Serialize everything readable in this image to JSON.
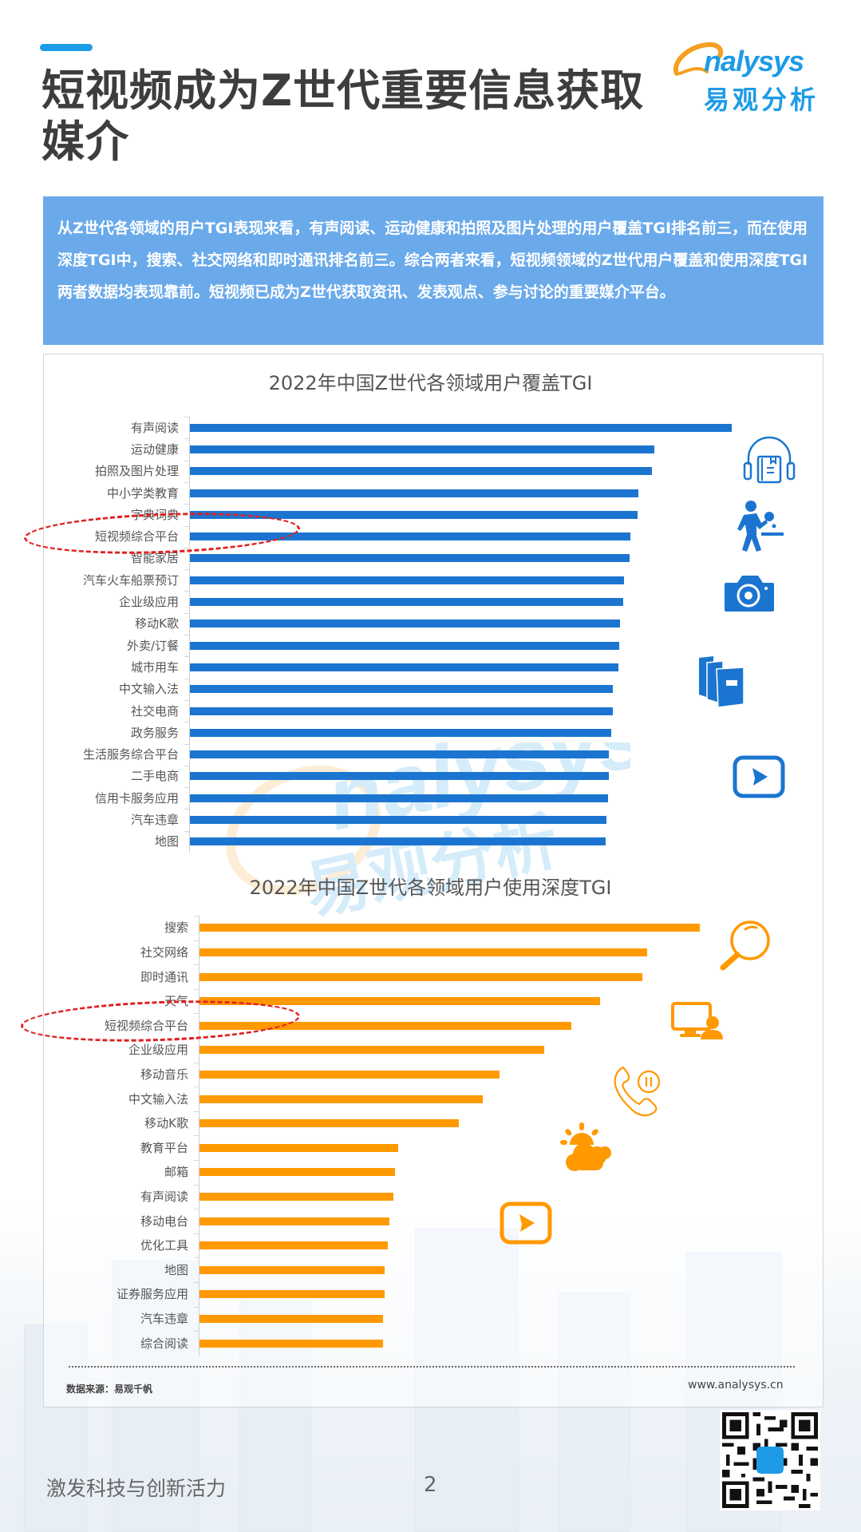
{
  "header": {
    "title": "短视频成为Z世代重要信息获取媒介",
    "logo": {
      "en": "nalysys",
      "cn": "易观分析"
    }
  },
  "summary": "从Z世代各领域的用户TGI表现来看，有声阅读、运动健康和拍照及图片处理的用户覆盖TGI排名前三，而在使用深度TGI中，搜索、社交网络和即时通讯排名前三。综合两者来看，短视频领域的Z世代用户覆盖和使用深度TGI两者数据均表现靠前。短视频已成为Z世代获取资讯、发表观点、参与讨论的重要媒介平台。",
  "colors": {
    "accent": "#1e9be6",
    "summary_bg": "#6aaaeb",
    "coverage_bar": "#1b75d0",
    "depth_bar": "#ff9900",
    "highlight": "#e02020"
  },
  "chart_data": [
    {
      "type": "bar",
      "orientation": "horizontal",
      "title": "2022年中国Z世代各领域用户覆盖TGI",
      "xlabel": "",
      "ylabel": "",
      "grid": false,
      "legend": false,
      "value_note": "No axis ticks or data labels shown; values are relative bar lengths (max = 100).",
      "highlighted_category": "短视频综合平台",
      "categories": [
        "有声阅读",
        "运动健康",
        "拍照及图片处理",
        "中小学类教育",
        "字典词典",
        "短视频综合平台",
        "智能家居",
        "汽车火车船票预订",
        "企业级应用",
        "移动K歌",
        "外卖/订餐",
        "城市用车",
        "中文输入法",
        "社交电商",
        "政务服务",
        "生活服务综合平台",
        "二手电商",
        "信用卡服务应用",
        "汽车违章",
        "地图"
      ],
      "values": [
        100,
        85.7,
        85.3,
        82.8,
        82.6,
        81.3,
        81.1,
        80.1,
        80.0,
        79.4,
        79.2,
        79.1,
        78.1,
        78.1,
        77.8,
        77.3,
        77.3,
        77.2,
        76.9,
        76.7
      ],
      "icons": [
        "audiobook-headphones-icon",
        "table-tennis-player-icon",
        "camera-icon",
        "books-icon",
        "video-play-icon"
      ]
    },
    {
      "type": "bar",
      "orientation": "horizontal",
      "title": "2022年中国Z世代各领域用户使用深度TGI",
      "xlabel": "",
      "ylabel": "",
      "grid": false,
      "legend": false,
      "value_note": "No axis ticks or data labels shown; values are relative bar lengths (max = 100).",
      "highlighted_category": "短视频综合平台",
      "categories": [
        "搜索",
        "社交网络",
        "即时通讯",
        "天气",
        "短视频综合平台",
        "企业级应用",
        "移动音乐",
        "中文输入法",
        "移动K歌",
        "教育平台",
        "邮箱",
        "有声阅读",
        "移动电台",
        "优化工具",
        "地图",
        "证券服务应用",
        "汽车违章",
        "综合阅读"
      ],
      "values": [
        100,
        89.5,
        88.5,
        80.1,
        74.3,
        68.9,
        60.0,
        56.6,
        51.8,
        39.7,
        39.1,
        38.8,
        38.0,
        37.6,
        37.0,
        37.0,
        36.7,
        36.7
      ],
      "icons": [
        "magnifier-icon",
        "computer-user-icon",
        "phone-call-pause-icon",
        "sun-cloud-weather-icon",
        "video-play-icon"
      ]
    }
  ],
  "footer": {
    "source": "数据来源：易观千帆",
    "site": "www.analysys.cn",
    "slogan": "激发科技与创新活力",
    "page_number": "2"
  }
}
